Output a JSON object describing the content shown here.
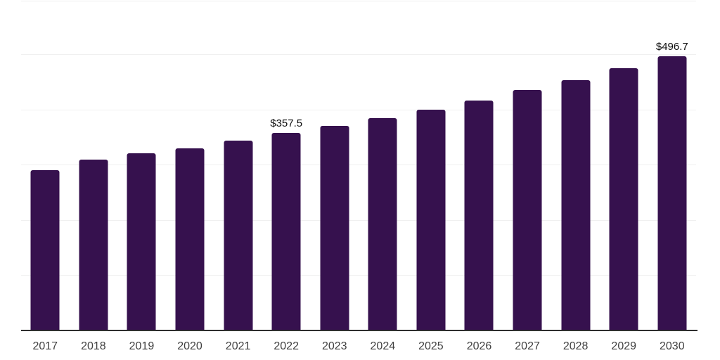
{
  "chart": {
    "background_color": "#ffffff",
    "bar_color": "#36114e",
    "grid_color": "#f0f0f0",
    "axis_color": "#2e2e2e",
    "tick_label_color": "#404040",
    "data_label_color": "#0d0d0d"
  },
  "chart_data": {
    "type": "bar",
    "title": "",
    "xlabel": "",
    "ylabel": "",
    "categories": [
      "2017",
      "2018",
      "2019",
      "2020",
      "2021",
      "2022",
      "2023",
      "2024",
      "2025",
      "2026",
      "2027",
      "2028",
      "2029",
      "2030"
    ],
    "values": [
      290,
      309,
      321,
      330,
      344,
      357.5,
      370,
      384,
      400,
      416,
      435,
      453,
      475,
      496.7
    ],
    "data_labels": [
      {
        "category": "2022",
        "text": "$357.5"
      },
      {
        "category": "2030",
        "text": "$496.7"
      }
    ],
    "ylim": [
      0,
      598
    ],
    "gridline_interval": 100,
    "grid": true,
    "legend": false,
    "y_axis_tick_labels_visible": false
  }
}
